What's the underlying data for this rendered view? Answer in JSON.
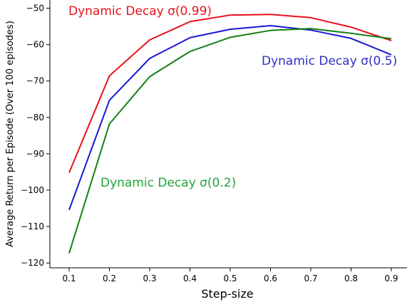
{
  "chart_data": {
    "type": "line",
    "xlabel": "Step-size",
    "ylabel": "Average Return per Episode (Over 100 episodes)",
    "x": [
      0.1,
      0.2,
      0.3,
      0.4,
      0.5,
      0.6,
      0.7,
      0.8,
      0.9
    ],
    "xticks": [
      "0.1",
      "0.2",
      "0.3",
      "0.4",
      "0.5",
      "0.6",
      "0.7",
      "0.8",
      "0.9"
    ],
    "yticks": [
      "−50",
      "−60",
      "−70",
      "−80",
      "−90",
      "−100",
      "−110",
      "−120"
    ],
    "ylim": [
      -121,
      -48.5
    ],
    "grid": false,
    "series": [
      {
        "name": "Dynamic Decay σ(0.99)",
        "color": "#e8111a",
        "values": [
          -95.2,
          -68.6,
          -58.7,
          -53.7,
          -51.9,
          -51.7,
          -52.6,
          -55.2,
          -58.9
        ]
      },
      {
        "name": "Dynamic Decay σ(0.5)",
        "color": "#1a18d6",
        "values": [
          -105.4,
          -75.3,
          -63.8,
          -58.1,
          -55.8,
          -54.8,
          -56.0,
          -58.3,
          -62.8
        ]
      },
      {
        "name": "Dynamic Decay σ(0.2)",
        "color": "#138013",
        "values": [
          -117.3,
          -81.8,
          -68.8,
          -61.9,
          -58.0,
          -56.1,
          -55.6,
          -56.9,
          -58.4
        ]
      }
    ],
    "labels": [
      {
        "text": "Dynamic Decay σ(0.99)",
        "color": "#e8111a"
      },
      {
        "text": "Dynamic Decay σ(0.5)",
        "color": "#2f2fc4"
      },
      {
        "text": "Dynamic Decay σ(0.2)",
        "color": "#20a43a"
      }
    ]
  }
}
